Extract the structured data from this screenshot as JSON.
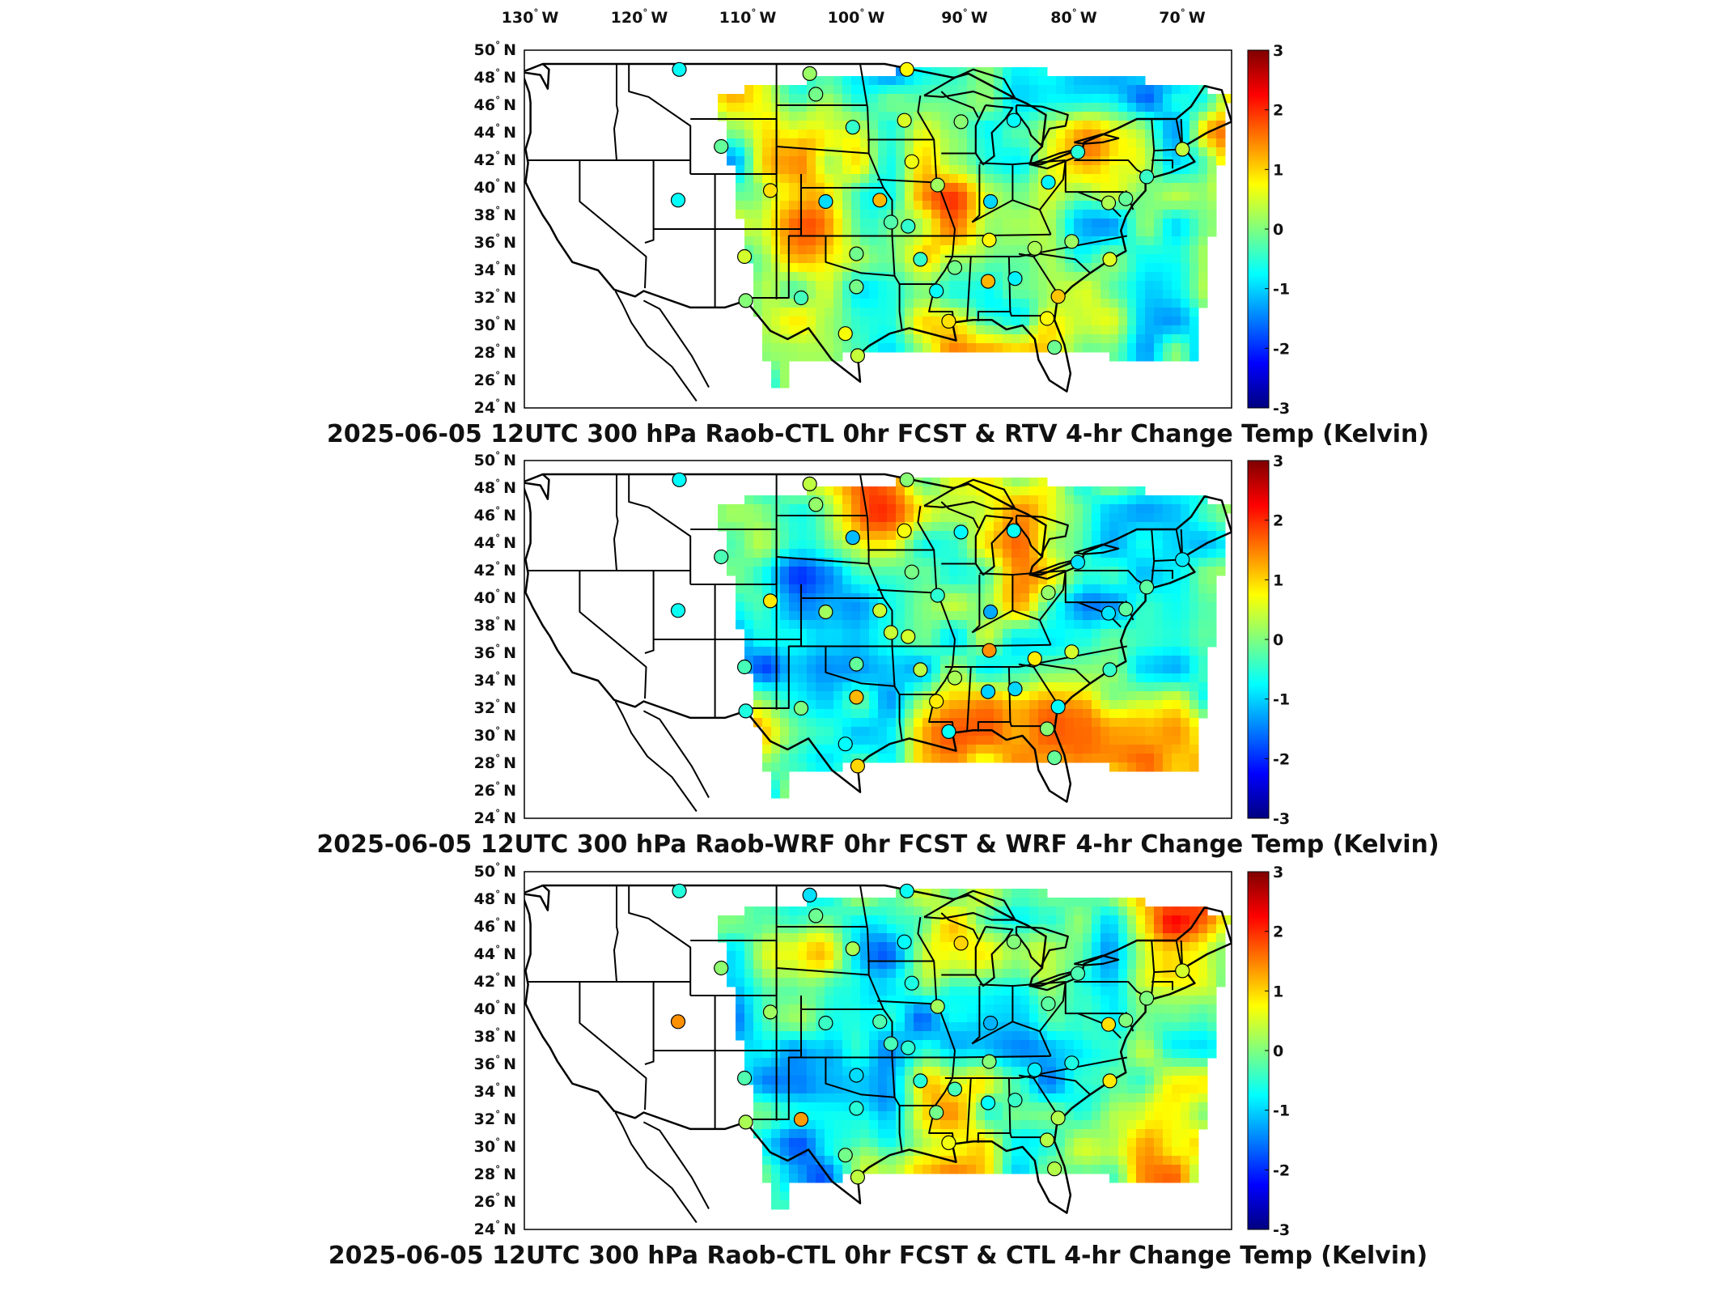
{
  "top_lon_labels": [
    "130",
    "120",
    "110",
    "100",
    "90",
    "80",
    "70"
  ],
  "lon_suffix": "W",
  "lat_labels": [
    "50",
    "48",
    "46",
    "44",
    "42",
    "40",
    "38",
    "36",
    "34",
    "32",
    "30",
    "28",
    "26",
    "24"
  ],
  "lat_suffix": "N",
  "colorbar": {
    "ticks": [
      "3",
      "2",
      "1",
      "0",
      "-1",
      "-2",
      "-3"
    ],
    "range": [
      -3,
      3
    ],
    "colors": [
      "#00007f",
      "#0000ff",
      "#007fff",
      "#00ffff",
      "#7fff7f",
      "#ffff00",
      "#ff7f00",
      "#ff0000",
      "#7f0000"
    ]
  },
  "panels": [
    {
      "title": "2025-06-05 12UTC 300 hPa Raob-CTL 0hr FCST & RTV 4-hr Change Temp (Kelvin)"
    },
    {
      "title": "2025-06-05 12UTC 300 hPa Raob-WRF 0hr FCST & WRF 4-hr Change Temp (Kelvin)"
    },
    {
      "title": "2025-06-05 12UTC 300 hPa Raob-CTL 0hr FCST & CTL 4-hr Change Temp (Kelvin)"
    }
  ],
  "raob_stations": [
    [
      -111.9,
      48.6
    ],
    [
      -101.3,
      48.3
    ],
    [
      -93.4,
      48.6
    ],
    [
      -100.8,
      46.8
    ],
    [
      -97.8,
      44.4
    ],
    [
      -93.6,
      44.9
    ],
    [
      -89.0,
      44.8
    ],
    [
      -84.7,
      44.9
    ],
    [
      -108.5,
      43.0
    ],
    [
      -93.0,
      41.9
    ],
    [
      -90.9,
      40.2
    ],
    [
      -79.5,
      42.6
    ],
    [
      -71.0,
      42.8
    ],
    [
      -112.0,
      39.1
    ],
    [
      -104.5,
      39.8
    ],
    [
      -100.0,
      39.0
    ],
    [
      -95.6,
      39.1
    ],
    [
      -93.3,
      37.2
    ],
    [
      -86.6,
      39.0
    ],
    [
      -81.9,
      40.4
    ],
    [
      -77.0,
      38.9
    ],
    [
      -75.6,
      39.2
    ],
    [
      -106.6,
      35.0
    ],
    [
      -97.5,
      35.2
    ],
    [
      -92.3,
      34.8
    ],
    [
      -86.7,
      36.2
    ],
    [
      -83.0,
      35.6
    ],
    [
      -80.0,
      36.1
    ],
    [
      -76.9,
      34.8
    ],
    [
      -89.5,
      34.2
    ],
    [
      -86.8,
      33.2
    ],
    [
      -84.6,
      33.4
    ],
    [
      -81.1,
      32.1
    ],
    [
      -102.0,
      32.0
    ],
    [
      -106.5,
      31.8
    ],
    [
      -97.5,
      32.8
    ],
    [
      -91.0,
      32.5
    ],
    [
      -90.0,
      30.3
    ],
    [
      -82.0,
      30.5
    ],
    [
      -98.4,
      29.4
    ],
    [
      -97.4,
      27.8
    ],
    [
      -81.4,
      28.4
    ],
    [
      -94.7,
      37.5
    ],
    [
      -73.9,
      40.8
    ]
  ]
}
